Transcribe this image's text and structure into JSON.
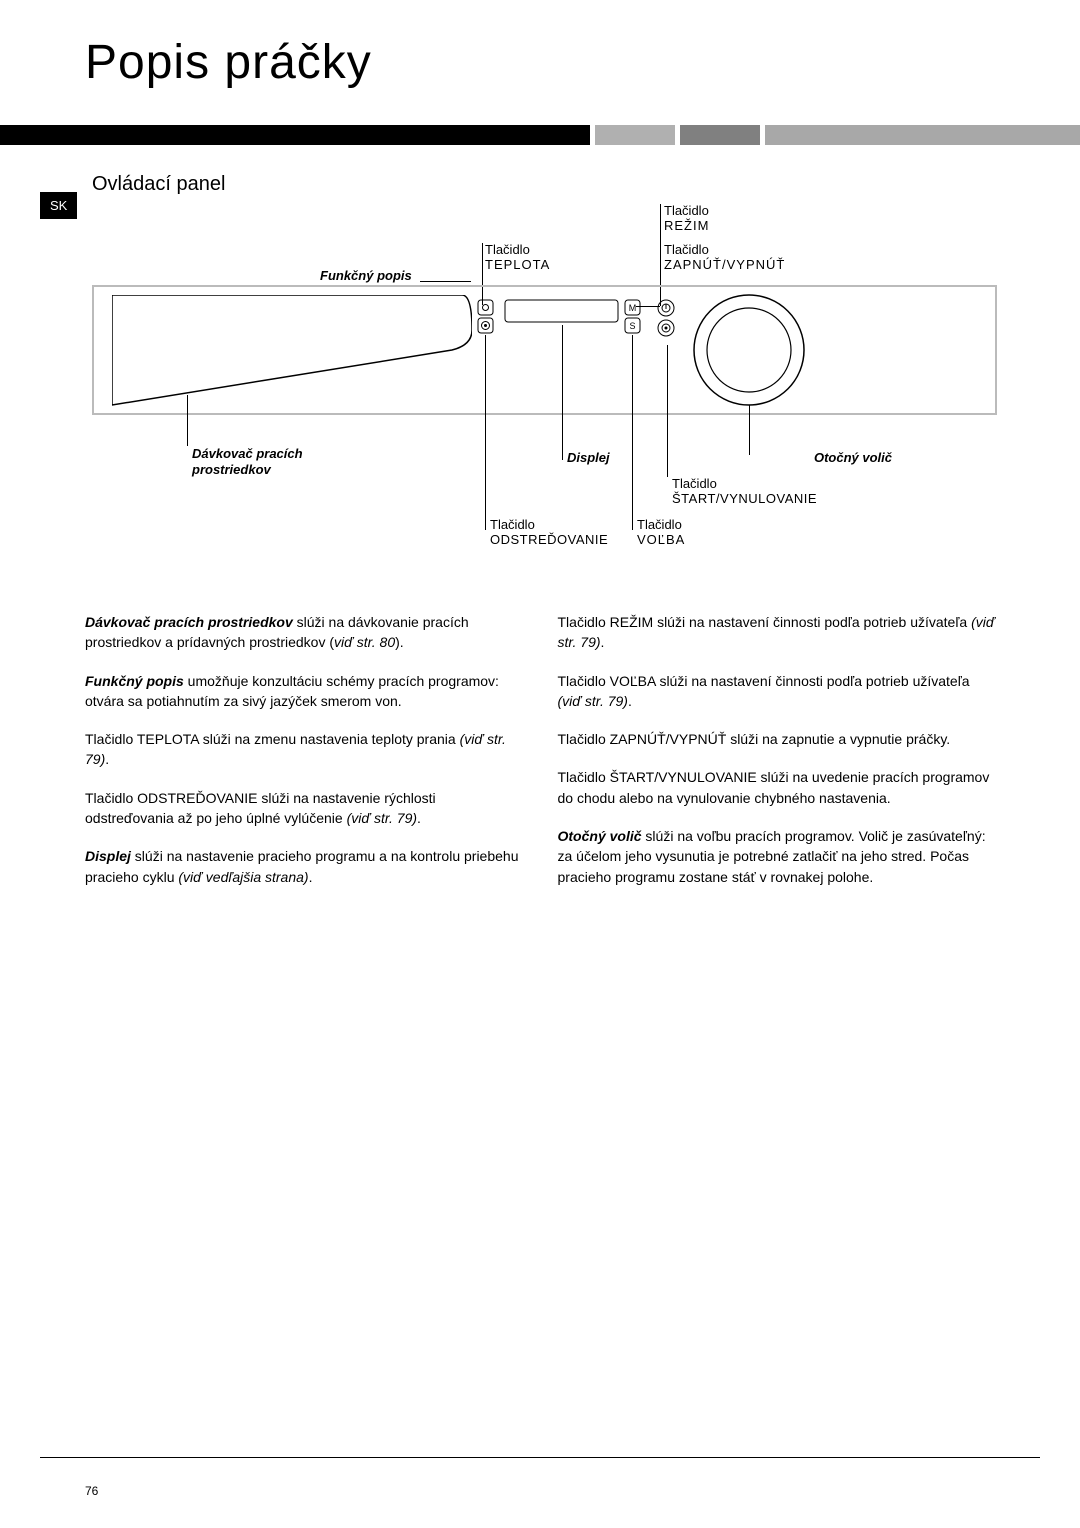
{
  "page_title": "Popis práčky",
  "lang_badge": "SK",
  "section_title": "Ovládací panel",
  "diagram": {
    "labels": {
      "funkcny_popis": "Funkčný popis",
      "tlacidlo": "Tlačidlo",
      "teplota": "TEPLOTA",
      "rezim": "REŽIM",
      "zapnut_vypnut": "ZAPNÚŤ/VYPNÚŤ",
      "davkovac_line1": "Dávkovač pracích",
      "davkovac_line2": "prostriedkov",
      "displej": "Displej",
      "otocny_volic": "Otočný volič",
      "start_vynulovanie": "ŠTART/VYNULOVANIE",
      "odstredovanie": "ODSTREĎOVANIE",
      "volba": "VOĽBA"
    }
  },
  "body": {
    "left": [
      {
        "parts": [
          {
            "t": "Dávkovač pracích prostriedkov",
            "c": "bi"
          },
          {
            "t": " slúži na dávkovanie pracích prostriedkov a prídavných prostriedkov ("
          },
          {
            "t": "viď str. 80",
            "c": "i"
          },
          {
            "t": ")."
          }
        ]
      },
      {
        "parts": [
          {
            "t": "Funkčný popis",
            "c": "bi"
          },
          {
            "t": " umožňuje konzultáciu schémy pracích programov: otvára sa potiahnutím za sivý jazýček smerom von."
          }
        ]
      },
      {
        "parts": [
          {
            "t": "Tlačidlo TEPLOTA slúži na zmenu nastavenia teploty prania "
          },
          {
            "t": "(viď str. 79)",
            "c": "i"
          },
          {
            "t": "."
          }
        ]
      },
      {
        "parts": [
          {
            "t": "Tlačidlo ODSTREĎOVANIE slúži na nastavenie rýchlosti odstreďovania až po jeho úplné vylúčenie "
          },
          {
            "t": "(viď str. 79)",
            "c": "i"
          },
          {
            "t": "."
          }
        ]
      },
      {
        "parts": [
          {
            "t": "Displej",
            "c": "bi"
          },
          {
            "t": " slúži na nastavenie pracieho programu a na kontrolu priebehu pracieho cyklu "
          },
          {
            "t": "(viď vedľajšia strana)",
            "c": "i"
          },
          {
            "t": "."
          }
        ]
      }
    ],
    "right": [
      {
        "parts": [
          {
            "t": "Tlačidlo REŽIM slúži na nastavení činnosti podľa potrieb užívateľa "
          },
          {
            "t": "(viď str. 79)",
            "c": "i"
          },
          {
            "t": "."
          }
        ]
      },
      {
        "parts": [
          {
            "t": "Tlačidlo VOĽBA slúži na nastavení činnosti podľa potrieb užívateľa "
          },
          {
            "t": "(viď str. 79)",
            "c": "i"
          },
          {
            "t": "."
          }
        ]
      },
      {
        "parts": [
          {
            "t": "Tlačidlo ZAPNÚŤ/VYPNÚŤ slúži na zapnutie a vypnutie práčky."
          }
        ]
      },
      {
        "parts": [
          {
            "t": "Tlačidlo ŠTART/VYNULOVANIE slúži na uvedenie pracích programov do chodu alebo na vynulovanie chybného nastavenia."
          }
        ]
      },
      {
        "parts": [
          {
            "t": "Otočný volič",
            "c": "bi"
          },
          {
            "t": " slúži na voľbu pracích programov. Volič je zasúvateľný: za účelom jeho vysunutia je potrebné zatlačiť na jeho stred. Počas pracieho programu zostane stáť v rovnakej polohe."
          }
        ]
      }
    ]
  },
  "page_number": "76"
}
